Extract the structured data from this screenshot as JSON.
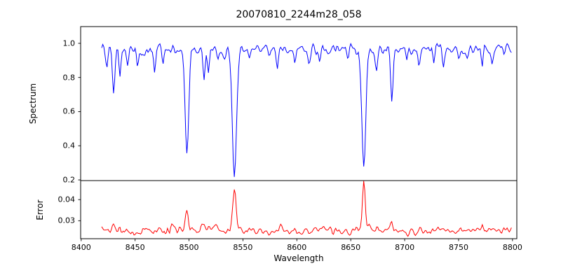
{
  "chart_data": {
    "type": "line",
    "title": "20070810_2244m28_058",
    "xlabel": "Wavelength",
    "xlim": [
      8399.5,
      8804
    ],
    "xticks": [
      8400,
      8450,
      8500,
      8550,
      8600,
      8650,
      8700,
      8750,
      8800
    ],
    "xtick_labels": [
      "8400",
      "8450",
      "8500",
      "8550",
      "8600",
      "8650",
      "8700",
      "8750",
      "8800"
    ],
    "x_start": 8419,
    "x_end": 8799,
    "x_step": 1,
    "seed": 20070810,
    "grid": false,
    "legend": "none",
    "panels": [
      {
        "name": "spectrum",
        "ylabel": "Spectrum",
        "ylim": [
          0.196,
          1.098
        ],
        "yticks": [
          1.0,
          0.8,
          0.6,
          0.4,
          0.2
        ],
        "ytick_labels": [
          "1.0",
          "0.8",
          "0.6",
          "0.4",
          "0.2"
        ],
        "color": "#0000ff",
        "continuum": 0.965,
        "noise_amp": 0.055,
        "lines": [
          [
            8424,
            0.1,
            0.9
          ],
          [
            8430,
            0.28,
            1.1
          ],
          [
            8436,
            0.16,
            0.9
          ],
          [
            8443,
            0.1,
            0.9
          ],
          [
            8452,
            0.07,
            0.9
          ],
          [
            8468,
            0.13,
            0.9
          ],
          [
            8476,
            0.08,
            0.9
          ],
          [
            8498.0,
            0.58,
            1.7
          ],
          [
            8514,
            0.2,
            1.0
          ],
          [
            8518,
            0.14,
            0.9
          ],
          [
            8527,
            0.07,
            0.9
          ],
          [
            8542.1,
            0.74,
            1.9
          ],
          [
            8556,
            0.06,
            0.9
          ],
          [
            8582,
            0.1,
            0.9
          ],
          [
            8598,
            0.09,
            0.9
          ],
          [
            8611,
            0.07,
            0.9
          ],
          [
            8621,
            0.09,
            0.9
          ],
          [
            8648,
            0.07,
            0.9
          ],
          [
            8662.1,
            0.71,
            1.8
          ],
          [
            8674,
            0.14,
            0.9
          ],
          [
            8688,
            0.3,
            1.1
          ],
          [
            8702,
            0.07,
            0.9
          ],
          [
            8713,
            0.09,
            0.9
          ],
          [
            8727,
            0.06,
            0.9
          ],
          [
            8736,
            0.08,
            0.9
          ],
          [
            8750,
            0.07,
            0.9
          ],
          [
            8758,
            0.06,
            0.9
          ],
          [
            8772,
            0.1,
            0.9
          ],
          [
            8781,
            0.07,
            0.9
          ]
        ]
      },
      {
        "name": "error",
        "ylabel": "Error",
        "ylim": [
          0.0215,
          0.049
        ],
        "yticks": [
          0.04,
          0.03
        ],
        "ytick_labels": [
          "0.04",
          "0.03"
        ],
        "color": "#ff0000",
        "baseline": 0.0253,
        "noise_amp": 0.003,
        "peaks": [
          [
            8430,
            0.003,
            1.1
          ],
          [
            8436,
            0.002,
            0.9
          ],
          [
            8468,
            0.0015,
            0.9
          ],
          [
            8498.0,
            0.0115,
            1.4
          ],
          [
            8514,
            0.002,
            0.9
          ],
          [
            8518,
            0.0015,
            0.9
          ],
          [
            8542.1,
            0.0205,
            1.5
          ],
          [
            8598,
            0.001,
            0.9
          ],
          [
            8662.1,
            0.0228,
            1.3
          ],
          [
            8674,
            0.0015,
            0.9
          ],
          [
            8688,
            0.0045,
            1.1
          ],
          [
            8736,
            0.001,
            0.9
          ],
          [
            8772,
            0.002,
            0.9
          ]
        ]
      }
    ]
  }
}
